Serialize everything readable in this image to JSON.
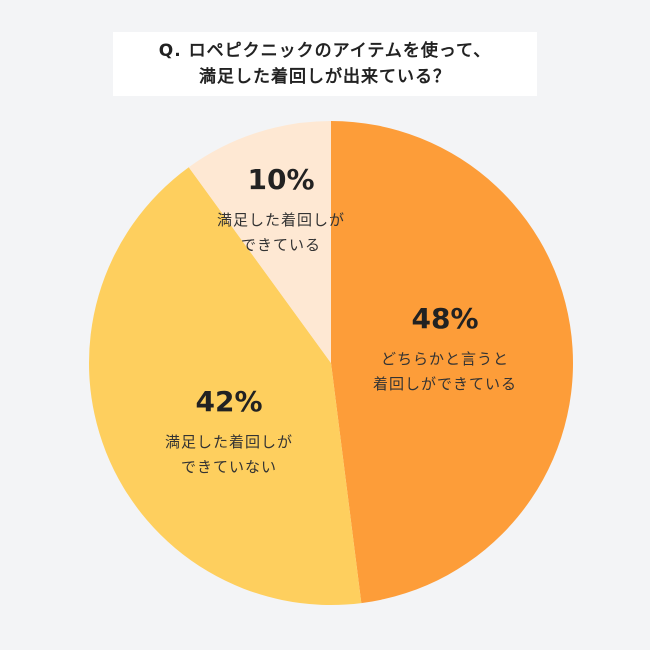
{
  "title": {
    "line1": "Q. ロペピクニックのアイテムを使って、",
    "line2": "満足した着回しが出来ている？"
  },
  "colors": {
    "background": "#f3f4f6",
    "slice_48": "#fd9d39",
    "slice_42": "#fecf5e",
    "slice_10": "#fee8d3"
  },
  "chart_data": {
    "type": "pie",
    "title": "Q. ロペピクニックのアイテムを使って、満足した着回しが出来ている？",
    "slices": [
      {
        "value": 48,
        "percent_label": "48%",
        "label_lines": [
          "どちらかと言うと",
          "着回しができている"
        ],
        "color": "#fd9d39"
      },
      {
        "value": 42,
        "percent_label": "42%",
        "label_lines": [
          "満足した着回しが",
          "できていない"
        ],
        "color": "#fecf5e"
      },
      {
        "value": 10,
        "percent_label": "10%",
        "label_lines": [
          "満足した着回しが",
          "できている"
        ],
        "color": "#fee8d3"
      }
    ],
    "start_angle_deg": 0,
    "direction": "clockwise",
    "legend": "none"
  }
}
